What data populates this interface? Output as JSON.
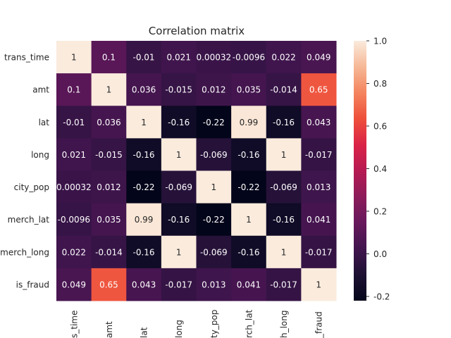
{
  "chart_data": {
    "type": "heatmap",
    "title": "Correlation matrix",
    "xlabel": "",
    "ylabel": "",
    "row_labels": [
      "trans_time",
      "amt",
      "lat",
      "long",
      "city_pop",
      "merch_lat",
      "merch_long",
      "is_fraud"
    ],
    "col_labels_visible": [
      "s_time",
      "amt",
      "lat",
      "long",
      "ty_pop",
      "rch_lat",
      "h_long",
      "_fraud"
    ],
    "values": [
      [
        1,
        0.1,
        -0.01,
        0.021,
        0.00032,
        -0.0096,
        0.022,
        0.049
      ],
      [
        0.1,
        1,
        0.036,
        -0.015,
        0.012,
        0.035,
        -0.014,
        0.65
      ],
      [
        -0.01,
        0.036,
        1,
        -0.16,
        -0.22,
        0.99,
        -0.16,
        0.043
      ],
      [
        0.021,
        -0.015,
        -0.16,
        1,
        -0.069,
        -0.16,
        1,
        -0.017
      ],
      [
        0.00032,
        0.012,
        -0.22,
        -0.069,
        1,
        -0.22,
        -0.069,
        0.013
      ],
      [
        -0.0096,
        0.035,
        0.99,
        -0.16,
        -0.22,
        1,
        -0.16,
        0.041
      ],
      [
        0.022,
        -0.014,
        -0.16,
        1,
        -0.069,
        -0.16,
        1,
        -0.017
      ],
      [
        0.049,
        0.65,
        0.043,
        -0.017,
        0.013,
        0.041,
        -0.017,
        1
      ]
    ],
    "cell_labels": [
      [
        "1",
        "0.1",
        "-0.01",
        "0.021",
        "0.00032",
        "-0.0096",
        "0.022",
        "0.049"
      ],
      [
        "0.1",
        "1",
        "0.036",
        "-0.015",
        "0.012",
        "0.035",
        "-0.014",
        "0.65"
      ],
      [
        "-0.01",
        "0.036",
        "1",
        "-0.16",
        "-0.22",
        "0.99",
        "-0.16",
        "0.043"
      ],
      [
        "0.021",
        "-0.015",
        "-0.16",
        "1",
        "-0.069",
        "-0.16",
        "1",
        "-0.017"
      ],
      [
        "0.00032",
        "0.012",
        "-0.22",
        "-0.069",
        "1",
        "-0.22",
        "-0.069",
        "0.013"
      ],
      [
        "-0.0096",
        "0.035",
        "0.99",
        "-0.16",
        "-0.22",
        "1",
        "-0.16",
        "0.041"
      ],
      [
        "0.022",
        "-0.014",
        "-0.16",
        "1",
        "-0.069",
        "-0.16",
        "1",
        "-0.017"
      ],
      [
        "0.049",
        "0.65",
        "0.043",
        "-0.017",
        "0.013",
        "0.041",
        "-0.017",
        "1"
      ]
    ],
    "colorbar": {
      "vmin": -0.22,
      "vmax": 1,
      "ticks": [
        -0.2,
        0,
        0.2,
        0.4,
        0.6,
        0.8,
        1
      ],
      "tick_labels": [
        "-0.2",
        "0.0",
        "0.2",
        "0.4",
        "0.6",
        "0.8",
        "1.0"
      ]
    },
    "colormap": "rocket",
    "grid": false
  }
}
